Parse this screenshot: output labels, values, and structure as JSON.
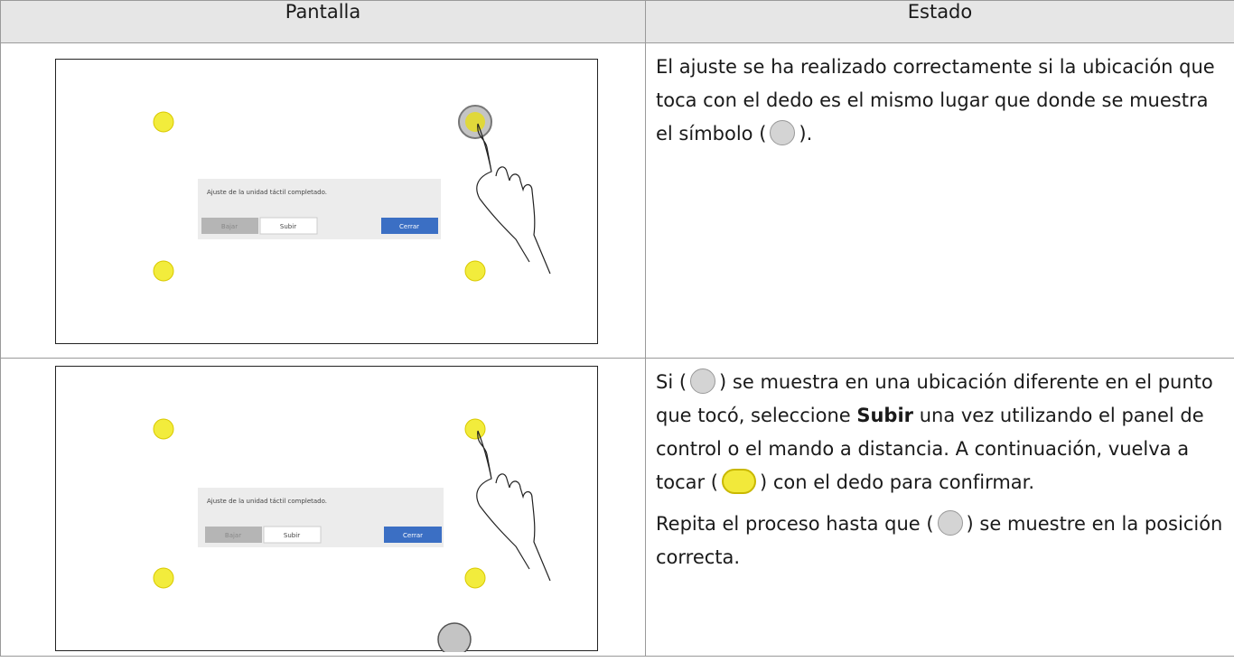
{
  "table": {
    "headers": [
      "Pantalla",
      "Estado"
    ],
    "rows": [
      {
        "screen": {
          "dialog": "Ajuste de la unidad táctil completado.",
          "buttons": [
            "Bajar",
            "Subir",
            "Cerrar"
          ]
        },
        "status": [
          [
            "El ajuste se ha realizado correctamente si la ubica­ción que toca con el dedo es el mismo lugar que donde se muestra el símbolo (",
            ")."
          ]
        ]
      },
      {
        "screen": {
          "dialog": "Ajuste de la unidad táctil completado.",
          "buttons": [
            "Bajar",
            "Subir",
            "Cerrar"
          ]
        },
        "status": [
          [
            "Si (",
            ") se muestra en una ubicación diferente en el punto que tocó, seleccione ",
            "Subir",
            " una vez utilizando el panel de control o el mando a distancia. A con­ti­nuación, vuelva a tocar (",
            ") con el dedo para con­firmar."
          ],
          [
            "Repita el proceso hasta que (",
            ") se muestre en la posición correcta."
          ]
        ]
      }
    ]
  }
}
